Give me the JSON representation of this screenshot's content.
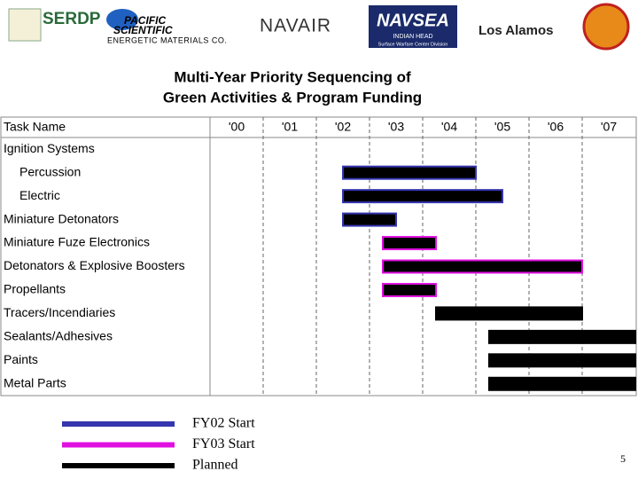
{
  "logos": {
    "serdp": "SERDP",
    "pacific": "PACIFIC",
    "scientific": "SCIENTIFIC",
    "energetic": "ENERGETIC MATERIALS CO.",
    "navair": "NAVAIR",
    "navsea": "NAVSEA",
    "indian_head": "INDIAN HEAD",
    "swcd": "Surface Warfare Center Division",
    "los_alamos": "Los Alamos"
  },
  "page_number": "5",
  "chart_data": {
    "type": "gantt",
    "title": [
      "Multi-Year Priority Sequencing of",
      "Green Activities & Program Funding"
    ],
    "header": "Task Name",
    "xlim": [
      0,
      8
    ],
    "xticks": [
      {
        "value": 0.5,
        "label": "'00"
      },
      {
        "value": 1.5,
        "label": "'01"
      },
      {
        "value": 2.5,
        "label": "'02"
      },
      {
        "value": 3.5,
        "label": "'03"
      },
      {
        "value": 4.5,
        "label": "'04"
      },
      {
        "value": 5.5,
        "label": "'05"
      },
      {
        "value": 6.5,
        "label": "'06"
      },
      {
        "value": 7.5,
        "label": "'07"
      }
    ],
    "xgrid": [
      1,
      2,
      3,
      4,
      5,
      6,
      7
    ],
    "series": [
      {
        "name": "FY02 Start",
        "color": "#3535b0"
      },
      {
        "name": "FY03 Start",
        "color": "#e010e0"
      },
      {
        "name": "Planned",
        "color": "#000000"
      }
    ],
    "bar_fill": "#000000",
    "tasks": [
      {
        "label": "Ignition Systems",
        "level": 1
      },
      {
        "label": "Percussion",
        "level": 2,
        "start": 2.5,
        "end": 5.0,
        "series": 0
      },
      {
        "label": "Electric",
        "level": 2,
        "start": 2.5,
        "end": 5.5,
        "series": 0
      },
      {
        "label": "Miniature Detonators",
        "level": 1,
        "start": 2.5,
        "end": 3.5,
        "series": 0
      },
      {
        "label": "Miniature Fuze Electronics",
        "level": 1,
        "start": 3.25,
        "end": 4.25,
        "series": 1
      },
      {
        "label": "Detonators & Explosive Boosters",
        "level": 1,
        "start": 3.25,
        "end": 7.0,
        "series": 1
      },
      {
        "label": "Propellants",
        "level": 1,
        "start": 3.25,
        "end": 4.25,
        "series": 1
      },
      {
        "label": "Tracers/Incendiaries",
        "level": 1,
        "start": 4.25,
        "end": 7.0,
        "series": 2
      },
      {
        "label": "Sealants/Adhesives",
        "level": 1,
        "start": 5.25,
        "end": 8.0,
        "series": 2
      },
      {
        "label": "Paints",
        "level": 1,
        "start": 5.25,
        "end": 8.0,
        "series": 2
      },
      {
        "label": "Metal Parts",
        "level": 1,
        "start": 5.25,
        "end": 8.0,
        "series": 2
      }
    ]
  }
}
